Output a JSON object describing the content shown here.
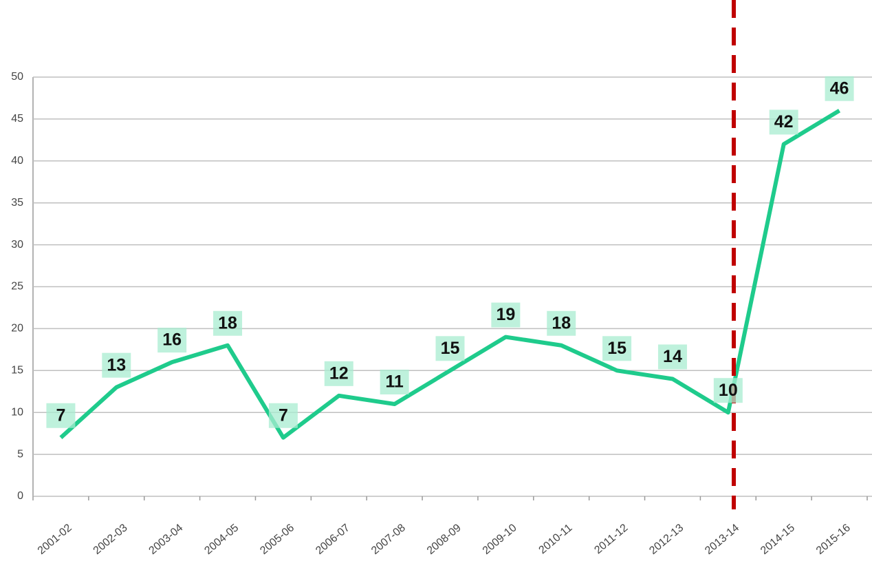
{
  "chart_data": {
    "type": "line",
    "categories": [
      "2001-02",
      "2002-03",
      "2003-04",
      "2004-05",
      "2005-06",
      "2006-07",
      "2007-08",
      "2008-09",
      "2009-10",
      "2010-11",
      "2011-12",
      "2012-13",
      "2013-14",
      "2014-15",
      "2015-16"
    ],
    "values": [
      7,
      13,
      16,
      18,
      7,
      12,
      11,
      15,
      19,
      18,
      15,
      14,
      10,
      42,
      46
    ],
    "color": "#1fcb8c",
    "ylim": [
      0,
      50
    ],
    "yticks": [
      0,
      5,
      10,
      15,
      20,
      25,
      30,
      35,
      40,
      45,
      50
    ],
    "grid": true
  }
}
